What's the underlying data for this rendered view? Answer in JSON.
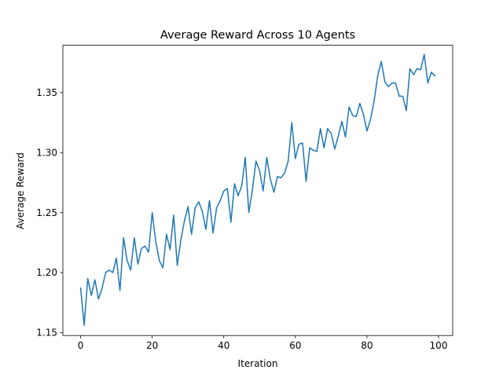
{
  "chart_data": {
    "type": "line",
    "title": "Average Reward Across 10 Agents",
    "xlabel": "Iteration",
    "ylabel": "Average Reward",
    "xlim": [
      -4.95,
      103.95
    ],
    "ylim": [
      1.1475,
      1.3895
    ],
    "xticks": [
      0,
      20,
      40,
      60,
      80,
      100
    ],
    "yticks": [
      1.15,
      1.2,
      1.25,
      1.3,
      1.35
    ],
    "ytick_labels": [
      "1.15",
      "1.20",
      "1.25",
      "1.30",
      "1.35"
    ],
    "grid": false,
    "legend": "none",
    "series": [
      {
        "color": "#1f77b4",
        "x": [
          0,
          1,
          2,
          3,
          4,
          5,
          6,
          7,
          8,
          9,
          10,
          11,
          12,
          13,
          14,
          15,
          16,
          17,
          18,
          19,
          20,
          21,
          22,
          23,
          24,
          25,
          26,
          27,
          28,
          29,
          30,
          31,
          32,
          33,
          34,
          35,
          36,
          37,
          38,
          39,
          40,
          41,
          42,
          43,
          44,
          45,
          46,
          47,
          48,
          49,
          50,
          51,
          52,
          53,
          54,
          55,
          56,
          57,
          58,
          59,
          60,
          61,
          62,
          63,
          64,
          65,
          66,
          67,
          68,
          69,
          70,
          71,
          72,
          73,
          74,
          75,
          76,
          77,
          78,
          79,
          80,
          81,
          82,
          83,
          84,
          85,
          86,
          87,
          88,
          89,
          90,
          91,
          92,
          93,
          94,
          95,
          96,
          97,
          98,
          99
        ],
        "values": [
          1.187,
          1.156,
          1.195,
          1.181,
          1.194,
          1.178,
          1.187,
          1.2,
          1.202,
          1.2,
          1.212,
          1.185,
          1.229,
          1.21,
          1.202,
          1.229,
          1.207,
          1.22,
          1.222,
          1.217,
          1.25,
          1.226,
          1.21,
          1.204,
          1.232,
          1.219,
          1.248,
          1.206,
          1.227,
          1.243,
          1.255,
          1.232,
          1.254,
          1.259,
          1.251,
          1.236,
          1.26,
          1.233,
          1.254,
          1.26,
          1.268,
          1.27,
          1.242,
          1.274,
          1.264,
          1.272,
          1.296,
          1.25,
          1.269,
          1.293,
          1.285,
          1.268,
          1.296,
          1.278,
          1.267,
          1.28,
          1.279,
          1.283,
          1.293,
          1.325,
          1.295,
          1.307,
          1.308,
          1.276,
          1.304,
          1.302,
          1.301,
          1.32,
          1.304,
          1.32,
          1.316,
          1.303,
          1.314,
          1.326,
          1.313,
          1.338,
          1.331,
          1.33,
          1.341,
          1.332,
          1.318,
          1.328,
          1.343,
          1.364,
          1.376,
          1.359,
          1.355,
          1.358,
          1.358,
          1.347,
          1.347,
          1.335,
          1.37,
          1.365,
          1.37,
          1.369,
          1.382,
          1.358,
          1.367,
          1.364
        ]
      }
    ]
  }
}
